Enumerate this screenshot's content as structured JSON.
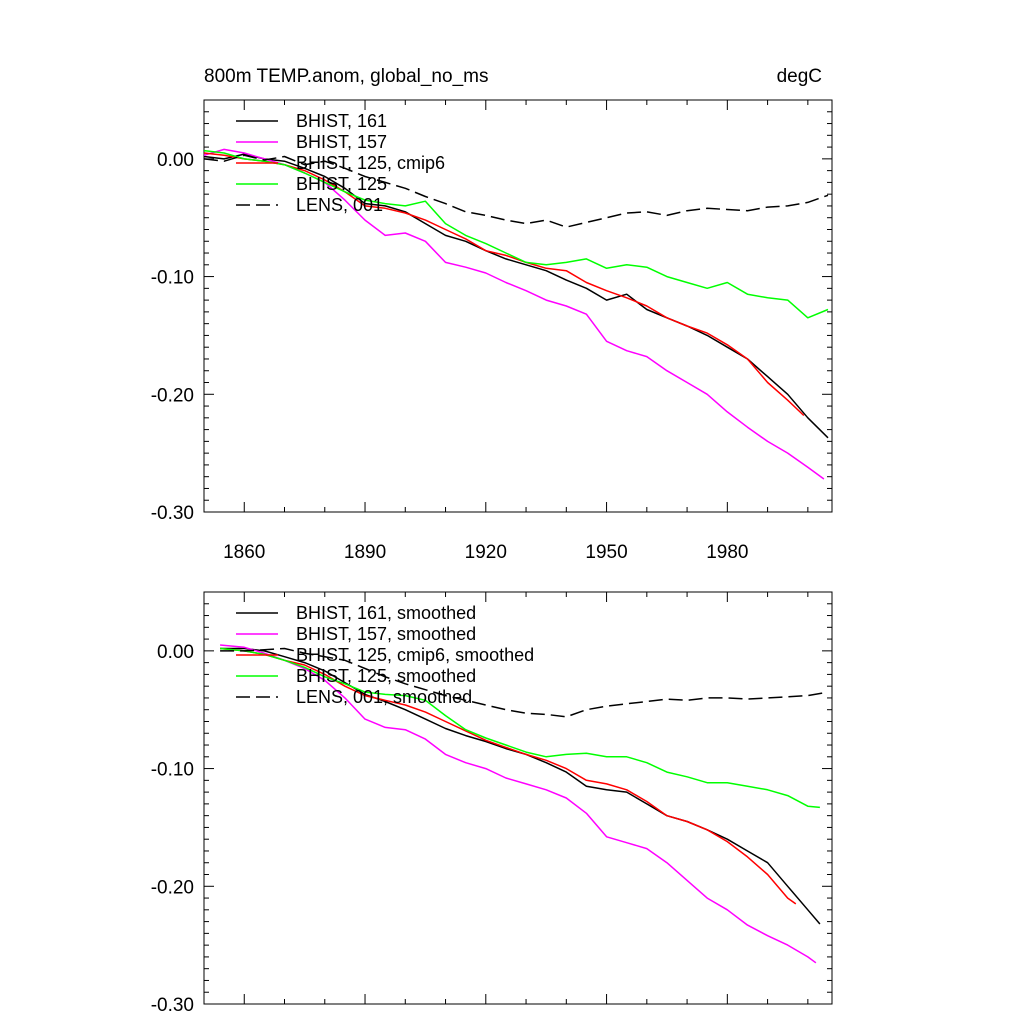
{
  "colors": {
    "black": "#000000",
    "magenta": "#ff00ff",
    "red": "#ff0000",
    "green": "#00ff00"
  },
  "chart_data": [
    {
      "type": "line",
      "title_left": "800m TEMP.anom, global_no_ms",
      "title_right": "degC",
      "xlim": [
        1850,
        2006
      ],
      "ylim": [
        -0.3,
        0.05
      ],
      "yticks": [
        0.0,
        -0.1,
        -0.2,
        -0.3
      ],
      "ytick_labels": [
        "0.00",
        "-0.10",
        "-0.20",
        "-0.30"
      ],
      "xticks": [
        1860,
        1890,
        1920,
        1950,
        1980
      ],
      "xtick_labels": [
        "1860",
        "1890",
        "1920",
        "1950",
        "1980"
      ],
      "legend": [
        {
          "label": "BHIST, 161",
          "color": "black",
          "dash": false
        },
        {
          "label": "BHIST, 157",
          "color": "magenta",
          "dash": false
        },
        {
          "label": "BHIST, 125, cmip6",
          "color": "red",
          "dash": false
        },
        {
          "label": "BHIST, 125",
          "color": "green",
          "dash": false
        },
        {
          "label": "LENS, 001",
          "color": "black",
          "dash": true
        }
      ],
      "series": [
        {
          "name": "BHIST, 161",
          "color": "black",
          "dash": false,
          "x": [
            1850,
            1855,
            1860,
            1865,
            1870,
            1875,
            1880,
            1885,
            1890,
            1895,
            1900,
            1905,
            1910,
            1915,
            1920,
            1925,
            1930,
            1935,
            1940,
            1945,
            1950,
            1955,
            1960,
            1965,
            1970,
            1975,
            1980,
            1985,
            1990,
            1995,
            2000,
            2005
          ],
          "y": [
            0.002,
            0.0,
            0.004,
            0.0,
            -0.002,
            -0.008,
            -0.015,
            -0.025,
            -0.038,
            -0.04,
            -0.045,
            -0.055,
            -0.065,
            -0.07,
            -0.078,
            -0.085,
            -0.09,
            -0.095,
            -0.103,
            -0.11,
            -0.12,
            -0.115,
            -0.128,
            -0.135,
            -0.142,
            -0.15,
            -0.16,
            -0.17,
            -0.185,
            -0.2,
            -0.22,
            -0.237
          ]
        },
        {
          "name": "BHIST, 157",
          "color": "magenta",
          "dash": false,
          "x": [
            1850,
            1855,
            1860,
            1865,
            1870,
            1875,
            1880,
            1885,
            1890,
            1895,
            1900,
            1905,
            1910,
            1915,
            1920,
            1925,
            1930,
            1935,
            1940,
            1945,
            1950,
            1955,
            1960,
            1965,
            1970,
            1975,
            1980,
            1985,
            1990,
            1995,
            2000,
            2004
          ],
          "y": [
            0.003,
            0.008,
            0.005,
            0.0,
            -0.005,
            -0.012,
            -0.02,
            -0.035,
            -0.052,
            -0.065,
            -0.063,
            -0.07,
            -0.088,
            -0.092,
            -0.097,
            -0.105,
            -0.112,
            -0.12,
            -0.125,
            -0.132,
            -0.155,
            -0.163,
            -0.168,
            -0.18,
            -0.19,
            -0.2,
            -0.215,
            -0.228,
            -0.24,
            -0.25,
            -0.262,
            -0.272
          ]
        },
        {
          "name": "BHIST, 125, cmip6",
          "color": "red",
          "dash": false,
          "x": [
            1850,
            1855,
            1860,
            1865,
            1870,
            1875,
            1880,
            1885,
            1890,
            1895,
            1900,
            1905,
            1910,
            1915,
            1920,
            1925,
            1930,
            1935,
            1940,
            1945,
            1950,
            1955,
            1960,
            1965,
            1970,
            1975,
            1980,
            1985,
            1990,
            1995,
            1999
          ],
          "y": [
            0.005,
            0.003,
            0.0,
            -0.002,
            -0.005,
            -0.01,
            -0.018,
            -0.028,
            -0.04,
            -0.042,
            -0.046,
            -0.052,
            -0.06,
            -0.068,
            -0.078,
            -0.082,
            -0.088,
            -0.093,
            -0.095,
            -0.105,
            -0.112,
            -0.118,
            -0.125,
            -0.135,
            -0.142,
            -0.148,
            -0.158,
            -0.17,
            -0.19,
            -0.205,
            -0.218
          ]
        },
        {
          "name": "BHIST, 125",
          "color": "green",
          "dash": false,
          "x": [
            1850,
            1855,
            1860,
            1865,
            1870,
            1875,
            1880,
            1885,
            1890,
            1895,
            1900,
            1905,
            1910,
            1915,
            1920,
            1925,
            1930,
            1935,
            1940,
            1945,
            1950,
            1955,
            1960,
            1965,
            1970,
            1975,
            1980,
            1985,
            1990,
            1995,
            2000,
            2005
          ],
          "y": [
            0.007,
            0.005,
            0.0,
            -0.002,
            -0.005,
            -0.012,
            -0.02,
            -0.028,
            -0.035,
            -0.038,
            -0.04,
            -0.036,
            -0.055,
            -0.065,
            -0.072,
            -0.08,
            -0.088,
            -0.09,
            -0.088,
            -0.085,
            -0.093,
            -0.09,
            -0.092,
            -0.1,
            -0.105,
            -0.11,
            -0.105,
            -0.115,
            -0.118,
            -0.12,
            -0.135,
            -0.128
          ]
        },
        {
          "name": "LENS, 001",
          "color": "black",
          "dash": true,
          "x": [
            1850,
            1855,
            1860,
            1865,
            1870,
            1875,
            1880,
            1885,
            1890,
            1895,
            1900,
            1905,
            1910,
            1915,
            1920,
            1925,
            1930,
            1935,
            1940,
            1945,
            1950,
            1955,
            1960,
            1965,
            1970,
            1975,
            1980,
            1985,
            1990,
            1995,
            2000,
            2005
          ],
          "y": [
            0.0,
            -0.002,
            0.003,
            -0.001,
            0.002,
            -0.005,
            -0.002,
            -0.008,
            -0.015,
            -0.02,
            -0.025,
            -0.032,
            -0.038,
            -0.045,
            -0.048,
            -0.052,
            -0.055,
            -0.052,
            -0.058,
            -0.054,
            -0.05,
            -0.046,
            -0.045,
            -0.048,
            -0.044,
            -0.042,
            -0.043,
            -0.044,
            -0.041,
            -0.04,
            -0.037,
            -0.031
          ]
        }
      ]
    },
    {
      "type": "line",
      "title_left": "",
      "title_right": "",
      "xlim": [
        1850,
        2006
      ],
      "ylim": [
        -0.3,
        0.05
      ],
      "yticks": [
        0.0,
        -0.1,
        -0.2,
        -0.3
      ],
      "ytick_labels": [
        "0.00",
        "-0.10",
        "-0.20",
        "-0.30"
      ],
      "xticks": [
        1860,
        1890,
        1920,
        1950,
        1980
      ],
      "xtick_labels": [],
      "legend": [
        {
          "label": "BHIST, 161, smoothed",
          "color": "black",
          "dash": false
        },
        {
          "label": "BHIST, 157, smoothed",
          "color": "magenta",
          "dash": false
        },
        {
          "label": "BHIST, 125, cmip6, smoothed",
          "color": "red",
          "dash": false
        },
        {
          "label": "BHIST, 125, smoothed",
          "color": "green",
          "dash": false
        },
        {
          "label": "LENS, 001, smoothed",
          "color": "black",
          "dash": true
        }
      ],
      "series": [
        {
          "name": "BHIST, 161, smoothed",
          "color": "black",
          "dash": false,
          "x": [
            1854,
            1860,
            1865,
            1870,
            1875,
            1880,
            1885,
            1890,
            1895,
            1900,
            1905,
            1910,
            1915,
            1920,
            1925,
            1930,
            1935,
            1940,
            1945,
            1950,
            1955,
            1960,
            1965,
            1970,
            1975,
            1980,
            1985,
            1990,
            1995,
            2000,
            2003
          ],
          "y": [
            0.002,
            0.002,
            0.0,
            -0.005,
            -0.01,
            -0.017,
            -0.027,
            -0.037,
            -0.043,
            -0.05,
            -0.058,
            -0.066,
            -0.072,
            -0.077,
            -0.083,
            -0.088,
            -0.095,
            -0.103,
            -0.115,
            -0.118,
            -0.12,
            -0.13,
            -0.14,
            -0.145,
            -0.152,
            -0.16,
            -0.17,
            -0.18,
            -0.2,
            -0.22,
            -0.232
          ]
        },
        {
          "name": "BHIST, 157, smoothed",
          "color": "magenta",
          "dash": false,
          "x": [
            1854,
            1860,
            1865,
            1870,
            1875,
            1880,
            1885,
            1890,
            1895,
            1900,
            1905,
            1910,
            1915,
            1920,
            1925,
            1930,
            1935,
            1940,
            1945,
            1950,
            1955,
            1960,
            1965,
            1970,
            1975,
            1980,
            1985,
            1990,
            1995,
            2000,
            2002
          ],
          "y": [
            0.005,
            0.003,
            -0.002,
            -0.008,
            -0.015,
            -0.025,
            -0.04,
            -0.058,
            -0.065,
            -0.067,
            -0.075,
            -0.088,
            -0.095,
            -0.1,
            -0.108,
            -0.113,
            -0.118,
            -0.125,
            -0.138,
            -0.158,
            -0.163,
            -0.168,
            -0.18,
            -0.195,
            -0.21,
            -0.22,
            -0.233,
            -0.242,
            -0.25,
            -0.26,
            -0.265
          ]
        },
        {
          "name": "BHIST, 125, cmip6, smoothed",
          "color": "red",
          "dash": false,
          "x": [
            1854,
            1860,
            1865,
            1870,
            1875,
            1880,
            1885,
            1890,
            1895,
            1900,
            1905,
            1910,
            1915,
            1920,
            1925,
            1930,
            1935,
            1940,
            1945,
            1950,
            1955,
            1960,
            1965,
            1970,
            1975,
            1980,
            1985,
            1990,
            1995,
            1997
          ],
          "y": [
            0.002,
            0.0,
            -0.003,
            -0.008,
            -0.012,
            -0.02,
            -0.03,
            -0.038,
            -0.042,
            -0.046,
            -0.052,
            -0.06,
            -0.068,
            -0.076,
            -0.082,
            -0.088,
            -0.093,
            -0.1,
            -0.11,
            -0.113,
            -0.118,
            -0.128,
            -0.14,
            -0.145,
            -0.152,
            -0.162,
            -0.175,
            -0.19,
            -0.21,
            -0.215
          ]
        },
        {
          "name": "BHIST, 125, smoothed",
          "color": "green",
          "dash": false,
          "x": [
            1854,
            1860,
            1865,
            1870,
            1875,
            1880,
            1885,
            1890,
            1895,
            1900,
            1905,
            1910,
            1915,
            1920,
            1925,
            1930,
            1935,
            1940,
            1945,
            1950,
            1955,
            1960,
            1965,
            1970,
            1975,
            1980,
            1985,
            1990,
            1995,
            2000,
            2003
          ],
          "y": [
            0.002,
            0.0,
            -0.003,
            -0.008,
            -0.014,
            -0.022,
            -0.028,
            -0.035,
            -0.037,
            -0.038,
            -0.042,
            -0.055,
            -0.067,
            -0.074,
            -0.08,
            -0.086,
            -0.09,
            -0.088,
            -0.087,
            -0.09,
            -0.09,
            -0.095,
            -0.103,
            -0.107,
            -0.112,
            -0.112,
            -0.115,
            -0.118,
            -0.123,
            -0.132,
            -0.133
          ]
        },
        {
          "name": "LENS, 001, smoothed",
          "color": "black",
          "dash": true,
          "x": [
            1854,
            1860,
            1865,
            1870,
            1875,
            1880,
            1885,
            1890,
            1895,
            1900,
            1905,
            1910,
            1915,
            1920,
            1925,
            1930,
            1935,
            1940,
            1945,
            1950,
            1955,
            1960,
            1965,
            1970,
            1975,
            1980,
            1985,
            1990,
            1995,
            2000,
            2005
          ],
          "y": [
            0.0,
            0.0,
            0.001,
            0.002,
            -0.002,
            -0.005,
            -0.008,
            -0.015,
            -0.022,
            -0.028,
            -0.033,
            -0.038,
            -0.042,
            -0.046,
            -0.05,
            -0.053,
            -0.054,
            -0.056,
            -0.05,
            -0.047,
            -0.045,
            -0.043,
            -0.041,
            -0.042,
            -0.04,
            -0.04,
            -0.041,
            -0.04,
            -0.039,
            -0.038,
            -0.035
          ]
        }
      ]
    }
  ]
}
